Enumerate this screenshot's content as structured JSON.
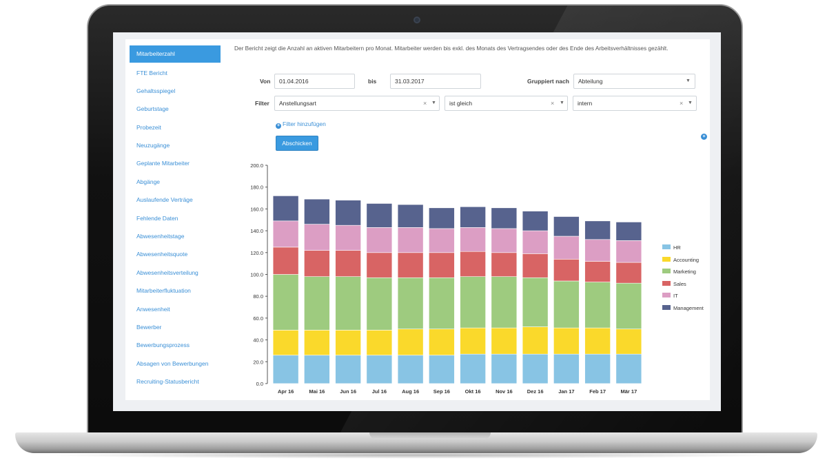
{
  "sidebar": {
    "items": [
      {
        "label": "Mitarbeiterzahl",
        "active": true
      },
      {
        "label": "FTE Bericht"
      },
      {
        "label": "Gehaltsspiegel"
      },
      {
        "label": "Geburtstage"
      },
      {
        "label": "Probezeit"
      },
      {
        "label": "Neuzugänge"
      },
      {
        "label": "Geplante Mitarbeiter"
      },
      {
        "label": "Abgänge"
      },
      {
        "label": "Auslaufende Verträge"
      },
      {
        "label": "Fehlende Daten"
      },
      {
        "label": "Abwesenheitstage"
      },
      {
        "label": "Abwesenheitsquote"
      },
      {
        "label": "Abwesenheitsverteilung"
      },
      {
        "label": "Mitarbeiterfluktuation"
      },
      {
        "label": "Anwesenheit"
      },
      {
        "label": "Bewerber"
      },
      {
        "label": "Bewerbungsprozess"
      },
      {
        "label": "Absagen von Bewerbungen"
      },
      {
        "label": "Recruiting-Statusbericht"
      }
    ]
  },
  "description": "Der Bericht zeigt die Anzahl an aktiven Mitarbeitern pro Monat. Mitarbeiter werden bis exkl. des Monats des Vertragsendes oder des Ende des Arbeitsverhältnisses gezählt.",
  "form": {
    "from_label": "Von",
    "from_value": "01.04.2016",
    "to_label": "bis",
    "to_value": "31.03.2017",
    "group_label": "Gruppiert nach",
    "group_value": "Abteilung",
    "filter_label": "Filter",
    "filter_field": "Anstellungsart",
    "filter_operator": "ist gleich",
    "filter_value": "intern",
    "add_filter_label": "Filter hinzufügen",
    "submit_label": "Abschicken"
  },
  "icons": {
    "clear": "close-icon",
    "dropdown": "chevron-down-icon",
    "add": "plus-circle-icon"
  },
  "colors": {
    "accent": "#3a9ae0",
    "link": "#3a8fd6"
  },
  "chart_data": {
    "type": "bar",
    "stacked": true,
    "categories": [
      "Apr 16",
      "Mai 16",
      "Jun 16",
      "Jul 16",
      "Aug 16",
      "Sep 16",
      "Okt 16",
      "Nov 16",
      "Dez 16",
      "Jan 17",
      "Feb 17",
      "Mär 17"
    ],
    "ylim": [
      0,
      200
    ],
    "yticks": [
      "0.0",
      "20.0",
      "40.0",
      "60.0",
      "80.0",
      "100.0",
      "120.0",
      "140.0",
      "160.0",
      "180.0",
      "200.0"
    ],
    "legend_position": "right",
    "series": [
      {
        "name": "HR",
        "color": "#88c4e4",
        "values": [
          26,
          26,
          26,
          26,
          26,
          26,
          27,
          27,
          27,
          27,
          27,
          27
        ]
      },
      {
        "name": "Accounting",
        "color": "#fad92b",
        "values": [
          23,
          23,
          23,
          23,
          24,
          24,
          24,
          24,
          25,
          24,
          24,
          23
        ]
      },
      {
        "name": "Marketing",
        "color": "#9ecb7f",
        "values": [
          51,
          49,
          49,
          48,
          47,
          47,
          47,
          47,
          45,
          43,
          42,
          42
        ]
      },
      {
        "name": "Sales",
        "color": "#d86464",
        "values": [
          25,
          24,
          24,
          23,
          23,
          23,
          23,
          22,
          22,
          20,
          19,
          19
        ]
      },
      {
        "name": "IT",
        "color": "#dc9ec4",
        "values": [
          24,
          24,
          23,
          23,
          23,
          22,
          22,
          22,
          21,
          21,
          20,
          20
        ]
      },
      {
        "name": "Management",
        "color": "#57638e",
        "values": [
          23,
          23,
          23,
          22,
          21,
          19,
          19,
          19,
          18,
          18,
          17,
          17
        ]
      }
    ]
  }
}
